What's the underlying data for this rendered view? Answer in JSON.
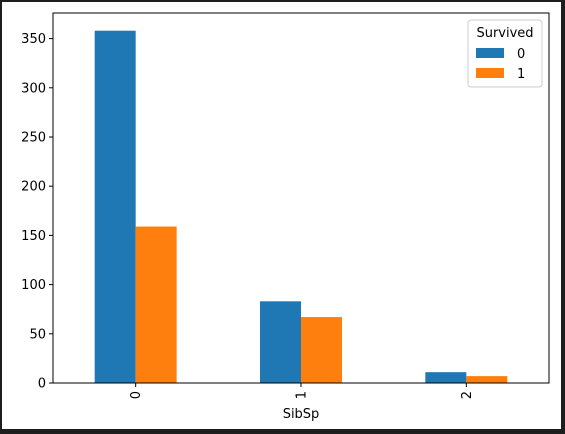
{
  "chart_data": {
    "type": "bar",
    "xlabel": "SibSp",
    "ylabel": "",
    "categories": [
      "0",
      "1",
      "2"
    ],
    "series": [
      {
        "name": "0",
        "values": [
          358,
          83,
          11
        ],
        "color": "#1f77b4"
      },
      {
        "name": "1",
        "values": [
          159,
          67,
          7
        ],
        "color": "#ff7f0e"
      }
    ],
    "ylim": [
      0,
      376
    ],
    "yticks": [
      0,
      50,
      100,
      150,
      200,
      250,
      300,
      350
    ],
    "legend": {
      "title": "Survived",
      "placement": "top-right"
    },
    "grid": false
  }
}
